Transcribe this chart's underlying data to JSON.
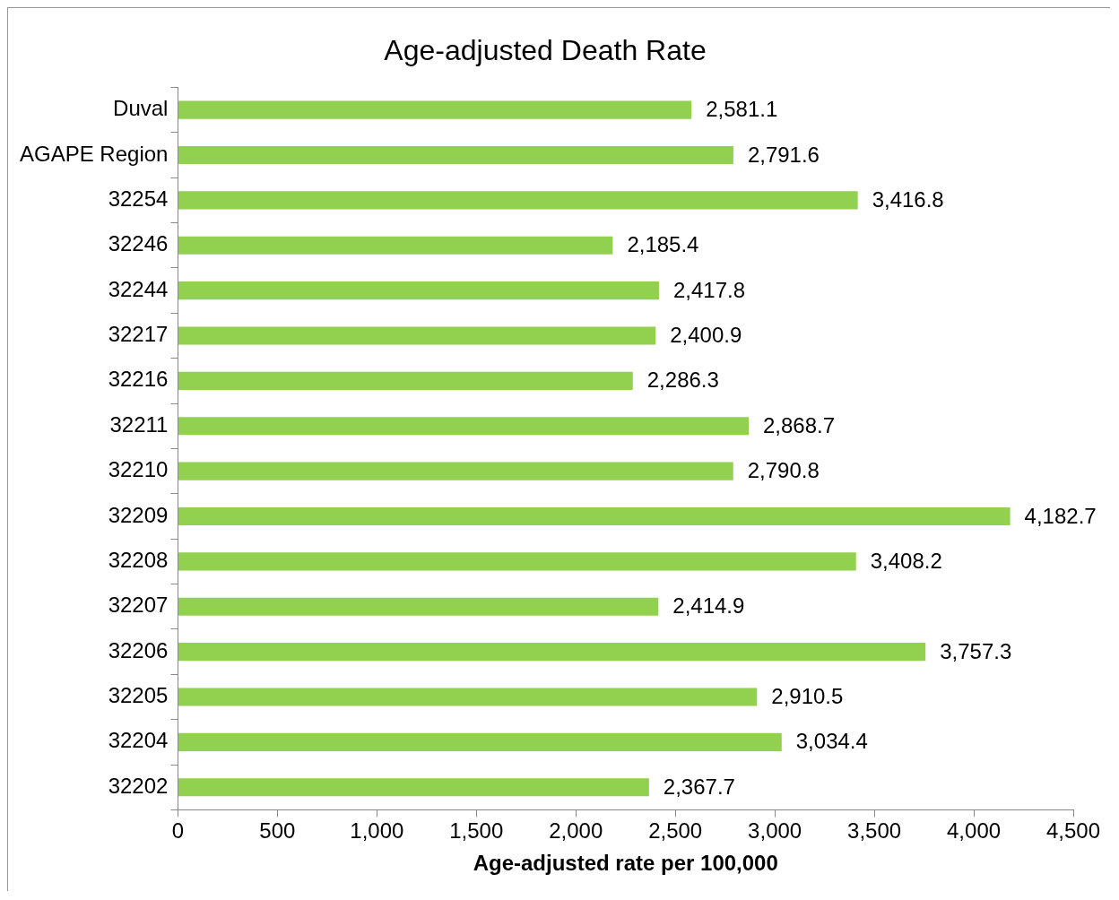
{
  "chart_data": {
    "type": "bar",
    "orientation": "horizontal",
    "title": "Age-adjusted Death Rate",
    "xlabel": "Age-adjusted rate per 100,000",
    "categories": [
      "Duval",
      "AGAPE Region",
      "32254",
      "32246",
      "32244",
      "32217",
      "32216",
      "32211",
      "32210",
      "32209",
      "32208",
      "32207",
      "32206",
      "32205",
      "32204",
      "32202"
    ],
    "values": [
      2581.1,
      2791.6,
      3416.8,
      2185.4,
      2417.8,
      2400.9,
      2286.3,
      2868.7,
      2790.8,
      4182.7,
      3408.2,
      2414.9,
      3757.3,
      2910.5,
      3034.4,
      2367.7
    ],
    "value_labels": [
      "2,581.1",
      "2,791.6",
      "3,416.8",
      "2,185.4",
      "2,417.8",
      "2,400.9",
      "2,286.3",
      "2,868.7",
      "2,790.8",
      "4,182.7",
      "3,408.2",
      "2,414.9",
      "3,757.3",
      "2,910.5",
      "3,034.4",
      "2,367.7"
    ],
    "color": "#92d050",
    "xlim": [
      0,
      4500
    ],
    "xticks": [
      0,
      500,
      {
        "value": 1000,
        "label": "1,000"
      },
      {
        "value": 1500,
        "label": "1,500"
      },
      {
        "value": 2000,
        "label": "2,000"
      },
      {
        "value": 2500,
        "label": "2,500"
      },
      {
        "value": 3000,
        "label": "3,000"
      },
      {
        "value": 3500,
        "label": "3,500"
      },
      {
        "value": 4000,
        "label": "4,000"
      },
      {
        "value": 4500,
        "label": "4,500"
      }
    ],
    "grid": false,
    "legend": false
  }
}
